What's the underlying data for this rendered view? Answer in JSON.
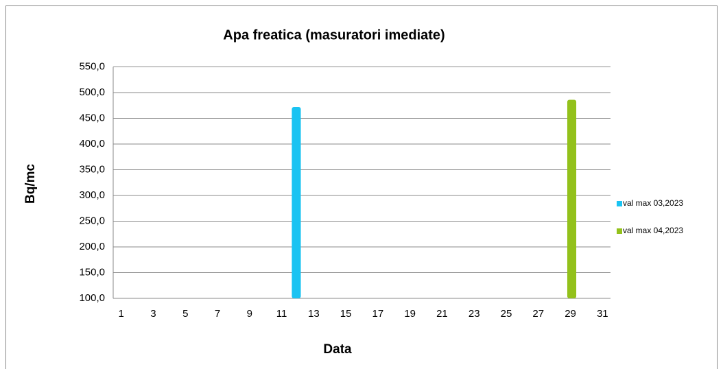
{
  "chart_data": {
    "type": "bar",
    "title": "Apa freatica (masuratori imediate)",
    "x_label": "Data",
    "y_label": "Bq/mc",
    "categories": [
      "1",
      null,
      "3",
      null,
      "5",
      null,
      "7",
      null,
      "9",
      null,
      "11",
      null,
      "13",
      null,
      "15",
      null,
      "17",
      null,
      "19",
      null,
      "21",
      null,
      "23",
      null,
      "25",
      null,
      "27",
      null,
      "29",
      null,
      "31"
    ],
    "series": [
      {
        "name": "val max 03,2023",
        "color": "#1ac3f2",
        "values": [
          null,
          null,
          null,
          null,
          null,
          null,
          null,
          null,
          null,
          null,
          null,
          472,
          null,
          null,
          null,
          null,
          null,
          null,
          null,
          null,
          null,
          null,
          null,
          null,
          null,
          null,
          null,
          null,
          null,
          null,
          null
        ]
      },
      {
        "name": "val max 04,2023",
        "color": "#93c11b",
        "values": [
          null,
          null,
          null,
          null,
          null,
          null,
          null,
          null,
          null,
          null,
          null,
          null,
          null,
          null,
          null,
          null,
          null,
          null,
          null,
          null,
          null,
          null,
          null,
          null,
          null,
          null,
          null,
          null,
          486,
          null,
          null
        ]
      }
    ],
    "ylim": [
      100,
      550
    ],
    "yticks": [
      {
        "value": 100,
        "label": "100,0"
      },
      {
        "value": 150,
        "label": "150,0"
      },
      {
        "value": 200,
        "label": "200,0"
      },
      {
        "value": 250,
        "label": "250,0"
      },
      {
        "value": 300,
        "label": "300,0"
      },
      {
        "value": 350,
        "label": "350,0"
      },
      {
        "value": 400,
        "label": "400,0"
      },
      {
        "value": 450,
        "label": "450,0"
      },
      {
        "value": 500,
        "label": "500,0"
      },
      {
        "value": 550,
        "label": "550,0"
      }
    ],
    "grid": true,
    "legend": "right"
  }
}
